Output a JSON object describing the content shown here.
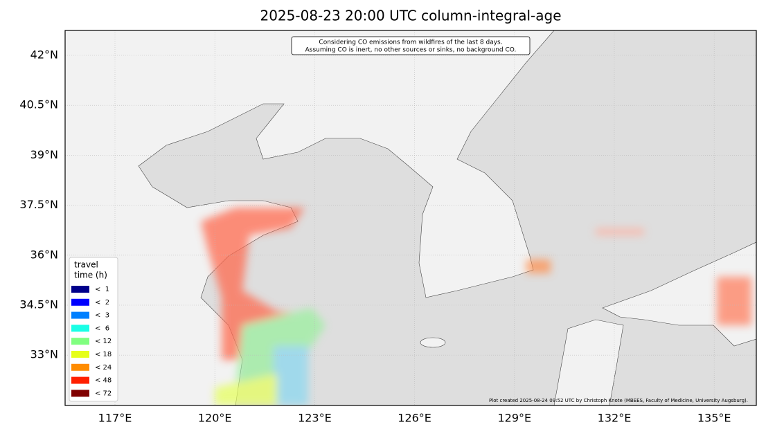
{
  "title": "2025-08-23 20:00 UTC column-integral-age",
  "note": [
    "Considering CO emissions from wildfires of the last 8 days.",
    "Assuming CO is inert, no other sources or sinks, no background CO."
  ],
  "lat_labels": [
    "42°N",
    "40.5°N",
    "39°N",
    "37.5°N",
    "36°N",
    "34.5°N",
    "33°N"
  ],
  "lon_labels": [
    "117°E",
    "120°E",
    "123°E",
    "126°E",
    "129°E",
    "132°E",
    "135°E"
  ],
  "legend": {
    "title": [
      "travel",
      "time (h)"
    ],
    "entries": [
      {
        "label": "<  1",
        "color": "#00008b"
      },
      {
        "label": "<  2",
        "color": "#0000ff"
      },
      {
        "label": "<  3",
        "color": "#0080ff"
      },
      {
        "label": "<  6",
        "color": "#1affe6"
      },
      {
        "label": "< 12",
        "color": "#80ff80"
      },
      {
        "label": "< 18",
        "color": "#e6ff1a"
      },
      {
        "label": "< 24",
        "color": "#ff8c00"
      },
      {
        "label": "< 48",
        "color": "#ff2000"
      },
      {
        "label": "< 72",
        "color": "#800000"
      }
    ]
  },
  "credit": "Plot created 2025-08-24 09:52 UTC by Christoph Knote (MBEES, Faculty of Medicine, University Augsburg)."
}
